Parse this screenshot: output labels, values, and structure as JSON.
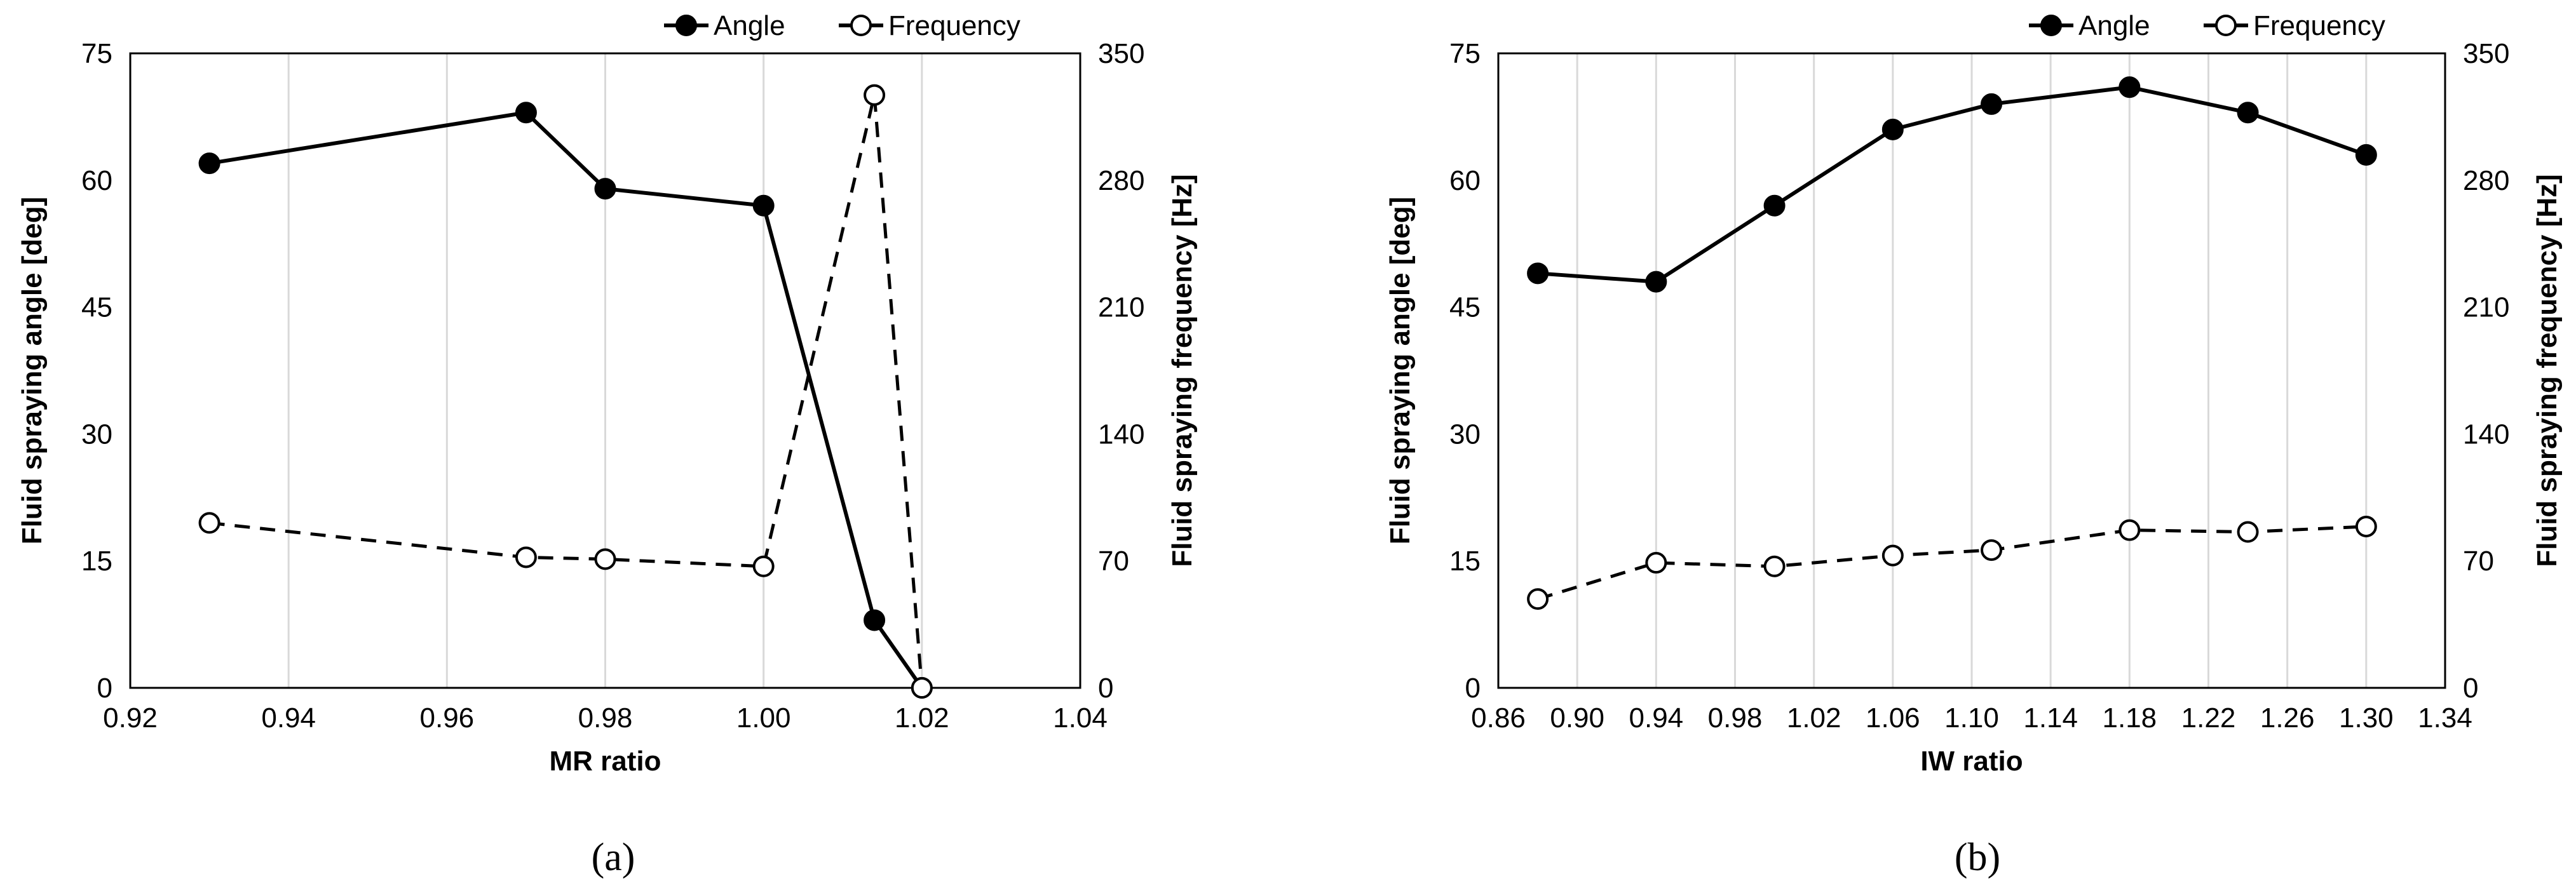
{
  "chart_data": [
    {
      "type": "line",
      "panel_label": "(a)",
      "xlabel": "MR ratio",
      "ylabel": "Fluid spraying angle [deg]",
      "y2label": "Fluid spraying frequency [Hz]",
      "xlim": [
        0.92,
        1.04
      ],
      "ylim": [
        0,
        75
      ],
      "y2lim": [
        0,
        350
      ],
      "xticks": [
        "0.92",
        "0.94",
        "0.96",
        "0.98",
        "1.00",
        "1.02",
        "1.04"
      ],
      "yticks": [
        "0",
        "15",
        "30",
        "45",
        "60",
        "75"
      ],
      "y2ticks": [
        "0",
        "70",
        "140",
        "210",
        "280",
        "350"
      ],
      "grid": "vertical",
      "legend_position": "top-right",
      "series": [
        {
          "name": "Angle",
          "axis": "left",
          "style": "solid-filled-marker",
          "x": [
            0.93,
            0.97,
            0.98,
            1.0,
            1.014,
            1.02
          ],
          "y": [
            62,
            68,
            59,
            57,
            8,
            0
          ]
        },
        {
          "name": "Frequency",
          "axis": "right",
          "style": "dashed-open-marker",
          "x": [
            0.93,
            0.97,
            0.98,
            1.0,
            1.014,
            1.02
          ],
          "y": [
            91,
            72,
            71,
            67,
            327,
            0
          ]
        }
      ]
    },
    {
      "type": "line",
      "panel_label": "(b)",
      "xlabel": "IW ratio",
      "ylabel": "Fluid spraying angle [deg]",
      "y2label": "Fluid spraying frequency [Hz]",
      "xlim": [
        0.86,
        1.34
      ],
      "ylim": [
        0,
        75
      ],
      "y2lim": [
        0,
        350
      ],
      "xticks": [
        "0.86",
        "0.90",
        "0.94",
        "0.98",
        "1.02",
        "1.06",
        "1.10",
        "1.14",
        "1.18",
        "1.22",
        "1.26",
        "1.30",
        "1.34"
      ],
      "yticks": [
        "0",
        "15",
        "30",
        "45",
        "60",
        "75"
      ],
      "y2ticks": [
        "0",
        "70",
        "140",
        "210",
        "280",
        "350"
      ],
      "grid": "vertical",
      "legend_position": "top-right",
      "series": [
        {
          "name": "Angle",
          "axis": "left",
          "style": "solid-filled-marker",
          "x": [
            0.88,
            0.94,
            1.0,
            1.06,
            1.11,
            1.18,
            1.24,
            1.3
          ],
          "y": [
            49,
            48,
            57,
            66,
            69,
            71,
            68,
            63
          ]
        },
        {
          "name": "Frequency",
          "axis": "right",
          "style": "dashed-open-marker",
          "x": [
            0.88,
            0.94,
            1.0,
            1.06,
            1.11,
            1.18,
            1.24,
            1.3
          ],
          "y": [
            49,
            69,
            67,
            73,
            76,
            87,
            86,
            89
          ]
        }
      ]
    }
  ]
}
